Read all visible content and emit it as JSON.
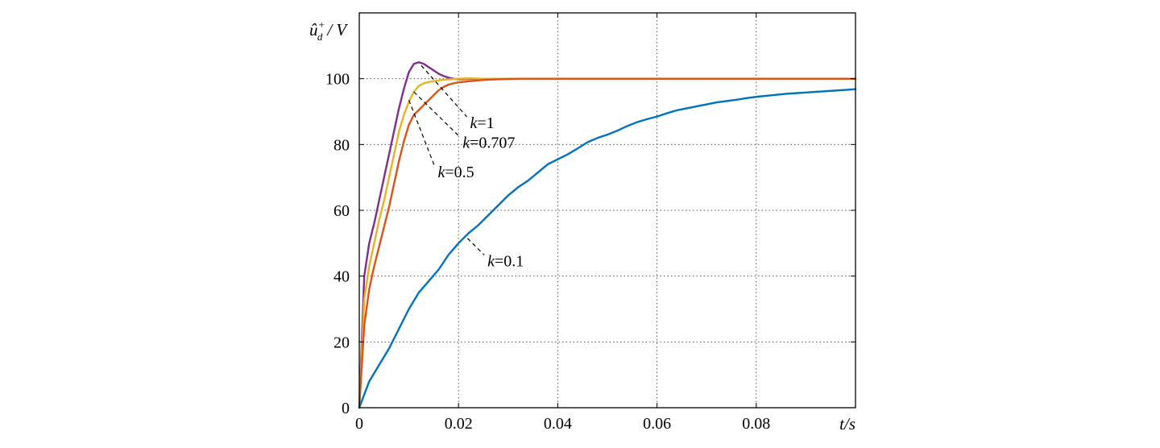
{
  "chart_data": {
    "type": "line",
    "xlabel": "t/s",
    "ylabel_base": "û",
    "ylabel_sub": "d",
    "ylabel_sup": "+",
    "ylabel_unit": "/ V",
    "xlim": [
      0,
      0.1
    ],
    "ylim": [
      0,
      120
    ],
    "xticks": [
      0,
      0.02,
      0.04,
      0.06,
      0.08
    ],
    "xtick_labels": [
      "0",
      "0.02",
      "0.04",
      "0.06",
      "0.08"
    ],
    "yticks": [
      0,
      20,
      40,
      60,
      80,
      100
    ],
    "ytick_labels": [
      "0",
      "20",
      "40",
      "60",
      "80",
      "100"
    ],
    "grid": true,
    "series": [
      {
        "name": "k=1",
        "color": "#7E2F8E",
        "x": [
          0,
          0.001,
          0.002,
          0.003,
          0.004,
          0.005,
          0.006,
          0.007,
          0.008,
          0.009,
          0.01,
          0.011,
          0.012,
          0.013,
          0.014,
          0.015,
          0.016,
          0.017,
          0.018,
          0.019,
          0.02,
          0.022,
          0.025,
          0.03,
          0.04,
          0.05,
          0.06,
          0.07,
          0.08,
          0.09,
          0.1
        ],
        "y": [
          0,
          40,
          50,
          56,
          63,
          70,
          77,
          84,
          91,
          97,
          102,
          104.5,
          105,
          104.5,
          103.5,
          102.5,
          101.5,
          100.8,
          100.3,
          100.0,
          99.8,
          99.9,
          100,
          100,
          100,
          100,
          100,
          100,
          100,
          100,
          100
        ]
      },
      {
        "name": "k=0.707",
        "color": "#EDB120",
        "x": [
          0,
          0.001,
          0.002,
          0.003,
          0.004,
          0.005,
          0.006,
          0.007,
          0.008,
          0.009,
          0.01,
          0.011,
          0.012,
          0.013,
          0.014,
          0.016,
          0.018,
          0.02,
          0.022,
          0.025,
          0.03,
          0.04,
          0.05,
          0.06,
          0.07,
          0.08,
          0.09,
          0.1
        ],
        "y": [
          0,
          33,
          43,
          50,
          57,
          63,
          70,
          77,
          84,
          89,
          93,
          96,
          97.8,
          98.6,
          99.0,
          99.5,
          99.8,
          100.0,
          100.1,
          100.0,
          100,
          100,
          100,
          100,
          100,
          100,
          100,
          100
        ]
      },
      {
        "name": "k=0.5",
        "color": "#D95319",
        "x": [
          0,
          0.001,
          0.002,
          0.003,
          0.004,
          0.005,
          0.006,
          0.007,
          0.008,
          0.009,
          0.01,
          0.011,
          0.012,
          0.013,
          0.014,
          0.015,
          0.016,
          0.017,
          0.018,
          0.019,
          0.02,
          0.022,
          0.024,
          0.026,
          0.028,
          0.03,
          0.033,
          0.04,
          0.05,
          0.06,
          0.07,
          0.08,
          0.09,
          0.1
        ],
        "y": [
          0,
          25,
          36,
          43,
          49,
          55,
          61,
          68,
          75,
          81,
          86,
          89,
          90.5,
          92,
          93.5,
          95,
          96.5,
          97.5,
          98.2,
          98.6,
          98.9,
          99.2,
          99.5,
          99.7,
          99.8,
          99.9,
          100,
          100,
          100,
          100,
          100,
          100,
          100,
          100
        ]
      },
      {
        "name": "k=0.1",
        "color": "#0072BD",
        "x": [
          0,
          0.002,
          0.004,
          0.006,
          0.008,
          0.01,
          0.012,
          0.014,
          0.016,
          0.018,
          0.02,
          0.022,
          0.024,
          0.026,
          0.028,
          0.03,
          0.032,
          0.034,
          0.036,
          0.038,
          0.04,
          0.042,
          0.044,
          0.046,
          0.048,
          0.05,
          0.052,
          0.054,
          0.056,
          0.058,
          0.06,
          0.062,
          0.064,
          0.066,
          0.068,
          0.07,
          0.072,
          0.074,
          0.076,
          0.078,
          0.08,
          0.082,
          0.084,
          0.086,
          0.088,
          0.09,
          0.092,
          0.094,
          0.096,
          0.098,
          0.1
        ],
        "y": [
          0,
          8,
          13,
          18,
          24,
          30,
          35,
          38.5,
          42,
          46.5,
          50,
          53,
          55.5,
          58.5,
          61.5,
          64.5,
          67,
          69,
          71.5,
          74,
          75.5,
          77,
          78.8,
          80.7,
          82,
          83,
          84.2,
          85.6,
          86.8,
          87.7,
          88.5,
          89.5,
          90.4,
          91,
          91.6,
          92.2,
          92.8,
          93.2,
          93.6,
          94.1,
          94.5,
          94.8,
          95.1,
          95.4,
          95.6,
          95.8,
          96.0,
          96.2,
          96.4,
          96.6,
          96.8
        ]
      }
    ],
    "annotations": [
      {
        "italic": "k",
        "rest": "=1",
        "anchor": [
          0.0125,
          104
        ],
        "label_at": [
          0.022,
          85
        ]
      },
      {
        "italic": "k",
        "rest": "=0.707",
        "anchor": [
          0.011,
          96
        ],
        "label_at": [
          0.0205,
          79
        ]
      },
      {
        "italic": "k",
        "rest": "=0.5",
        "anchor": [
          0.01,
          93.5
        ],
        "label_at": [
          0.0155,
          70
        ]
      },
      {
        "italic": "k",
        "rest": "=0.1",
        "anchor": [
          0.0218,
          51.5
        ],
        "label_at": [
          0.0255,
          43
        ]
      }
    ]
  }
}
